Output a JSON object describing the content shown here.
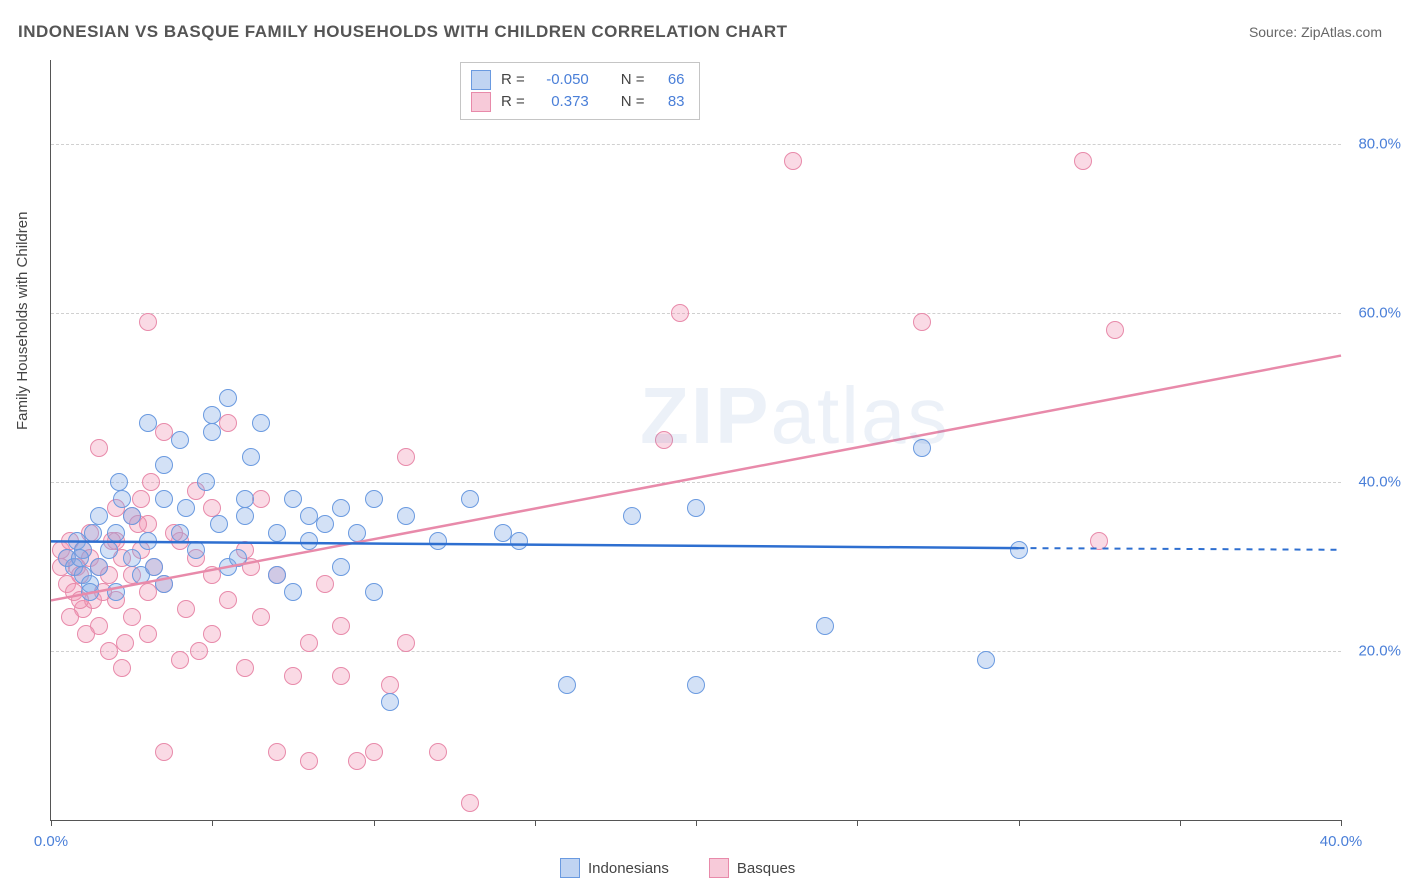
{
  "title": "INDONESIAN VS BASQUE FAMILY HOUSEHOLDS WITH CHILDREN CORRELATION CHART",
  "source_label": "Source: ZipAtlas.com",
  "y_axis_label": "Family Households with Children",
  "watermark_bold": "ZIP",
  "watermark_light": "atlas",
  "chart": {
    "type": "scatter",
    "background_color": "#ffffff",
    "grid_color": "#d0d0d0",
    "axis_color": "#555555",
    "label_color": "#4a7fd8",
    "xlim": [
      0,
      40
    ],
    "ylim": [
      0,
      90
    ],
    "x_ticks": [
      0,
      5,
      10,
      15,
      20,
      25,
      30,
      35,
      40
    ],
    "x_tick_labels": {
      "0": "0.0%",
      "40": "40.0%"
    },
    "y_ticks": [
      20,
      40,
      60,
      80
    ],
    "y_tick_labels": {
      "20": "20.0%",
      "40": "40.0%",
      "60": "60.0%",
      "80": "80.0%"
    },
    "point_radius": 8,
    "point_opacity": 0.35,
    "line_width": 2.5
  },
  "series": {
    "blue": {
      "name": "Indonesians",
      "color": "#6a9ae0",
      "fill": "rgba(130,170,230,0.35)",
      "R": "-0.050",
      "N": "66",
      "trend": {
        "x1": 0,
        "y1": 33.0,
        "x2": 30,
        "y2": 32.2,
        "dash_x2": 40,
        "dash_y2": 32.0
      },
      "points": [
        [
          0.5,
          31
        ],
        [
          0.7,
          30
        ],
        [
          0.8,
          33
        ],
        [
          1,
          29
        ],
        [
          1,
          32
        ],
        [
          1.2,
          28
        ],
        [
          1.3,
          34
        ],
        [
          1.5,
          30
        ],
        [
          1.5,
          36
        ],
        [
          1.8,
          32
        ],
        [
          2,
          27
        ],
        [
          2,
          34
        ],
        [
          2.2,
          38
        ],
        [
          2.5,
          31
        ],
        [
          2.5,
          36
        ],
        [
          2.8,
          29
        ],
        [
          3,
          33
        ],
        [
          3,
          47
        ],
        [
          3.2,
          30
        ],
        [
          3.5,
          38
        ],
        [
          3.5,
          28
        ],
        [
          4,
          34
        ],
        [
          4,
          45
        ],
        [
          4.2,
          37
        ],
        [
          4.5,
          32
        ],
        [
          5,
          46
        ],
        [
          5,
          48
        ],
        [
          5.2,
          35
        ],
        [
          5.5,
          30
        ],
        [
          5.5,
          50
        ],
        [
          6,
          36
        ],
        [
          6,
          38
        ],
        [
          6.5,
          47
        ],
        [
          7,
          34
        ],
        [
          7,
          29
        ],
        [
          7.5,
          38
        ],
        [
          7.5,
          27
        ],
        [
          8,
          36
        ],
        [
          8,
          33
        ],
        [
          8.5,
          35
        ],
        [
          9,
          30
        ],
        [
          9,
          37
        ],
        [
          9.5,
          34
        ],
        [
          10,
          27
        ],
        [
          10,
          38
        ],
        [
          10.5,
          14
        ],
        [
          11,
          36
        ],
        [
          12,
          33
        ],
        [
          13,
          38
        ],
        [
          14,
          34
        ],
        [
          14.5,
          33
        ],
        [
          16,
          16
        ],
        [
          18,
          36
        ],
        [
          20,
          37
        ],
        [
          20,
          16
        ],
        [
          24,
          23
        ],
        [
          27,
          44
        ],
        [
          29,
          19
        ],
        [
          30,
          32
        ],
        [
          3.5,
          42
        ],
        [
          4.8,
          40
        ],
        [
          6.2,
          43
        ],
        [
          5.8,
          31
        ],
        [
          1.2,
          27
        ],
        [
          0.9,
          31
        ],
        [
          2.1,
          40
        ]
      ]
    },
    "pink": {
      "name": "Basques",
      "color": "#e88aaa",
      "fill": "rgba(240,150,180,0.35)",
      "R": "0.373",
      "N": "83",
      "trend": {
        "x1": 0,
        "y1": 26.0,
        "x2": 40,
        "y2": 55.0
      },
      "points": [
        [
          0.3,
          30
        ],
        [
          0.3,
          32
        ],
        [
          0.5,
          28
        ],
        [
          0.5,
          31
        ],
        [
          0.6,
          33
        ],
        [
          0.7,
          27
        ],
        [
          0.8,
          30
        ],
        [
          0.9,
          29
        ],
        [
          1,
          32
        ],
        [
          1,
          25
        ],
        [
          1.2,
          31
        ],
        [
          1.2,
          34
        ],
        [
          1.3,
          26
        ],
        [
          1.5,
          30
        ],
        [
          1.5,
          23
        ],
        [
          1.5,
          44
        ],
        [
          1.8,
          20
        ],
        [
          1.8,
          29
        ],
        [
          2,
          33
        ],
        [
          2,
          26
        ],
        [
          2,
          37
        ],
        [
          2.2,
          31
        ],
        [
          2.2,
          18
        ],
        [
          2.5,
          36
        ],
        [
          2.5,
          24
        ],
        [
          2.5,
          29
        ],
        [
          2.8,
          32
        ],
        [
          2.8,
          38
        ],
        [
          3,
          27
        ],
        [
          3,
          22
        ],
        [
          3,
          35
        ],
        [
          3.2,
          30
        ],
        [
          3.5,
          46
        ],
        [
          3.5,
          28
        ],
        [
          3.5,
          8
        ],
        [
          4,
          33
        ],
        [
          4,
          19
        ],
        [
          4.2,
          25
        ],
        [
          4.5,
          31
        ],
        [
          4.5,
          39
        ],
        [
          5,
          22
        ],
        [
          5,
          29
        ],
        [
          5,
          37
        ],
        [
          5.5,
          47
        ],
        [
          5.5,
          26
        ],
        [
          3,
          59
        ],
        [
          6,
          32
        ],
        [
          6,
          18
        ],
        [
          6.2,
          30
        ],
        [
          6.5,
          24
        ],
        [
          6.5,
          38
        ],
        [
          7,
          8
        ],
        [
          7,
          29
        ],
        [
          7.5,
          17
        ],
        [
          8,
          21
        ],
        [
          8,
          7
        ],
        [
          8.5,
          28
        ],
        [
          9,
          17
        ],
        [
          9,
          23
        ],
        [
          9.5,
          7
        ],
        [
          10,
          8
        ],
        [
          10.5,
          16
        ],
        [
          11,
          21
        ],
        [
          11,
          43
        ],
        [
          12,
          8
        ],
        [
          13,
          2
        ],
        [
          19,
          45
        ],
        [
          19.5,
          60
        ],
        [
          23,
          78
        ],
        [
          27,
          59
        ],
        [
          32,
          78
        ],
        [
          33,
          58
        ],
        [
          32.5,
          33
        ],
        [
          0.6,
          24
        ],
        [
          0.9,
          26
        ],
        [
          1.1,
          22
        ],
        [
          1.6,
          27
        ],
        [
          1.9,
          33
        ],
        [
          2.3,
          21
        ],
        [
          2.7,
          35
        ],
        [
          3.1,
          40
        ],
        [
          3.8,
          34
        ],
        [
          4.6,
          20
        ]
      ]
    }
  },
  "top_legend": {
    "r_label": "R =",
    "n_label": "N ="
  },
  "bottom_legend": {
    "label_a": "Indonesians",
    "label_b": "Basques"
  }
}
